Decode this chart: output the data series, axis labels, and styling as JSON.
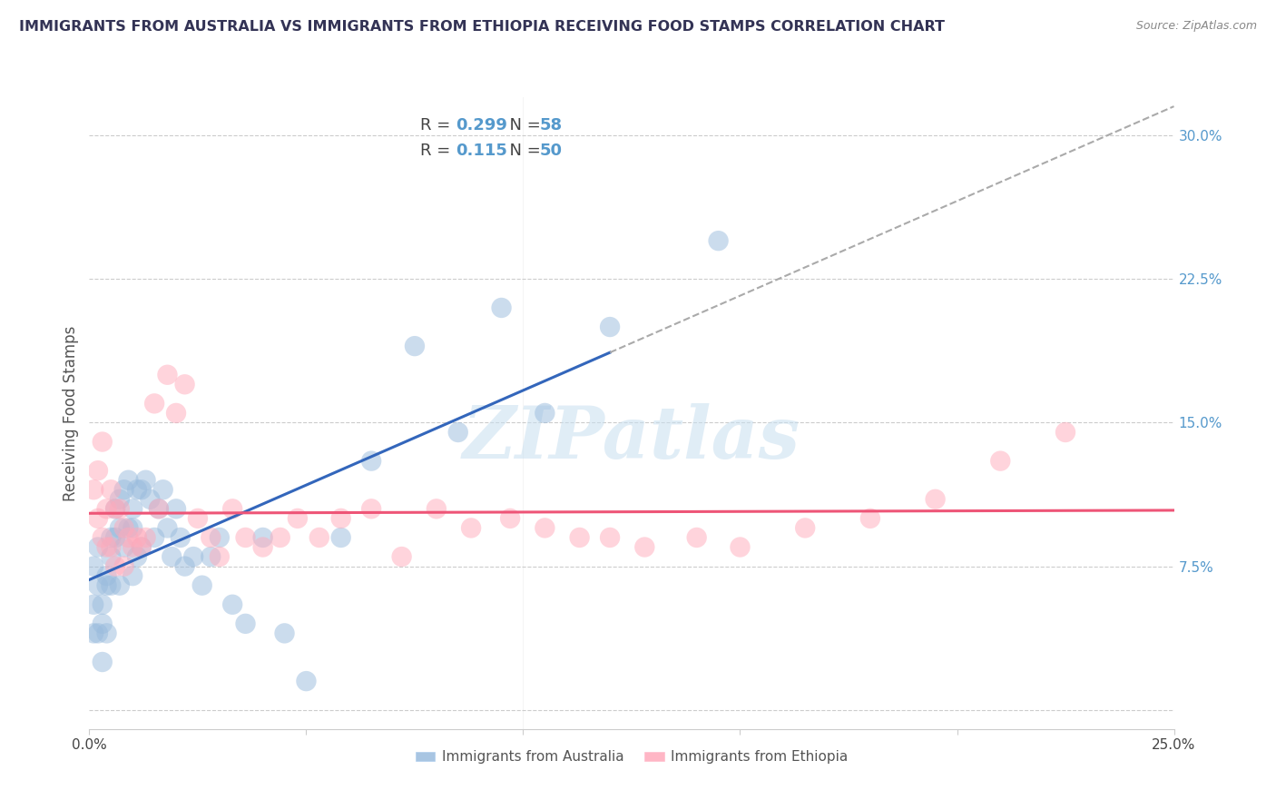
{
  "title": "IMMIGRANTS FROM AUSTRALIA VS IMMIGRANTS FROM ETHIOPIA RECEIVING FOOD STAMPS CORRELATION CHART",
  "source": "Source: ZipAtlas.com",
  "ylabel": "Receiving Food Stamps",
  "xlim": [
    0.0,
    0.25
  ],
  "ylim": [
    -0.01,
    0.32
  ],
  "ylim_plot": [
    0.0,
    0.3
  ],
  "x_ticks": [
    0.0,
    0.05,
    0.1,
    0.15,
    0.2,
    0.25
  ],
  "x_tick_labels": [
    "0.0%",
    "",
    "",
    "",
    "",
    "25.0%"
  ],
  "y_ticks_right": [
    0.0,
    0.075,
    0.15,
    0.225,
    0.3
  ],
  "y_tick_labels_right": [
    "",
    "7.5%",
    "15.0%",
    "22.5%",
    "30.0%"
  ],
  "grid_color": "#cccccc",
  "background_color": "#ffffff",
  "watermark": "ZIPatlas",
  "color_australia": "#99bbdd",
  "color_ethiopia": "#ffaabb",
  "trendline_australia_color": "#3366bb",
  "trendline_ethiopia_color": "#ee5577",
  "trendline_extension_color": "#aaaaaa",
  "aus_x": [
    0.001,
    0.001,
    0.001,
    0.002,
    0.002,
    0.002,
    0.003,
    0.003,
    0.003,
    0.004,
    0.004,
    0.004,
    0.005,
    0.005,
    0.005,
    0.006,
    0.006,
    0.007,
    0.007,
    0.007,
    0.008,
    0.008,
    0.009,
    0.009,
    0.01,
    0.01,
    0.01,
    0.011,
    0.011,
    0.012,
    0.012,
    0.013,
    0.014,
    0.015,
    0.016,
    0.017,
    0.018,
    0.019,
    0.02,
    0.021,
    0.022,
    0.024,
    0.026,
    0.028,
    0.03,
    0.033,
    0.036,
    0.04,
    0.045,
    0.05,
    0.058,
    0.065,
    0.075,
    0.085,
    0.095,
    0.105,
    0.12,
    0.145
  ],
  "aus_y": [
    0.075,
    0.055,
    0.04,
    0.085,
    0.065,
    0.04,
    0.055,
    0.045,
    0.025,
    0.07,
    0.065,
    0.04,
    0.09,
    0.08,
    0.065,
    0.105,
    0.09,
    0.11,
    0.095,
    0.065,
    0.115,
    0.085,
    0.12,
    0.095,
    0.105,
    0.095,
    0.07,
    0.115,
    0.08,
    0.115,
    0.085,
    0.12,
    0.11,
    0.09,
    0.105,
    0.115,
    0.095,
    0.08,
    0.105,
    0.09,
    0.075,
    0.08,
    0.065,
    0.08,
    0.09,
    0.055,
    0.045,
    0.09,
    0.04,
    0.015,
    0.09,
    0.13,
    0.19,
    0.145,
    0.21,
    0.155,
    0.2,
    0.245
  ],
  "eth_x": [
    0.001,
    0.002,
    0.002,
    0.003,
    0.003,
    0.004,
    0.004,
    0.005,
    0.005,
    0.006,
    0.006,
    0.007,
    0.008,
    0.008,
    0.009,
    0.01,
    0.011,
    0.012,
    0.013,
    0.015,
    0.016,
    0.018,
    0.02,
    0.022,
    0.025,
    0.028,
    0.03,
    0.033,
    0.036,
    0.04,
    0.044,
    0.048,
    0.053,
    0.058,
    0.065,
    0.072,
    0.08,
    0.088,
    0.097,
    0.105,
    0.113,
    0.12,
    0.128,
    0.14,
    0.15,
    0.165,
    0.18,
    0.195,
    0.21,
    0.225
  ],
  "eth_y": [
    0.115,
    0.125,
    0.1,
    0.14,
    0.09,
    0.105,
    0.085,
    0.115,
    0.085,
    0.105,
    0.075,
    0.105,
    0.095,
    0.075,
    0.09,
    0.085,
    0.09,
    0.085,
    0.09,
    0.16,
    0.105,
    0.175,
    0.155,
    0.17,
    0.1,
    0.09,
    0.08,
    0.105,
    0.09,
    0.085,
    0.09,
    0.1,
    0.09,
    0.1,
    0.105,
    0.08,
    0.105,
    0.095,
    0.1,
    0.095,
    0.09,
    0.09,
    0.085,
    0.09,
    0.085,
    0.095,
    0.1,
    0.11,
    0.13,
    0.145
  ],
  "aus_trend_x0": 0.0,
  "aus_trend_x_solid_end": 0.12,
  "aus_trend_x_dash_end": 0.25,
  "eth_trend_x0": 0.0,
  "eth_trend_x_end": 0.25
}
